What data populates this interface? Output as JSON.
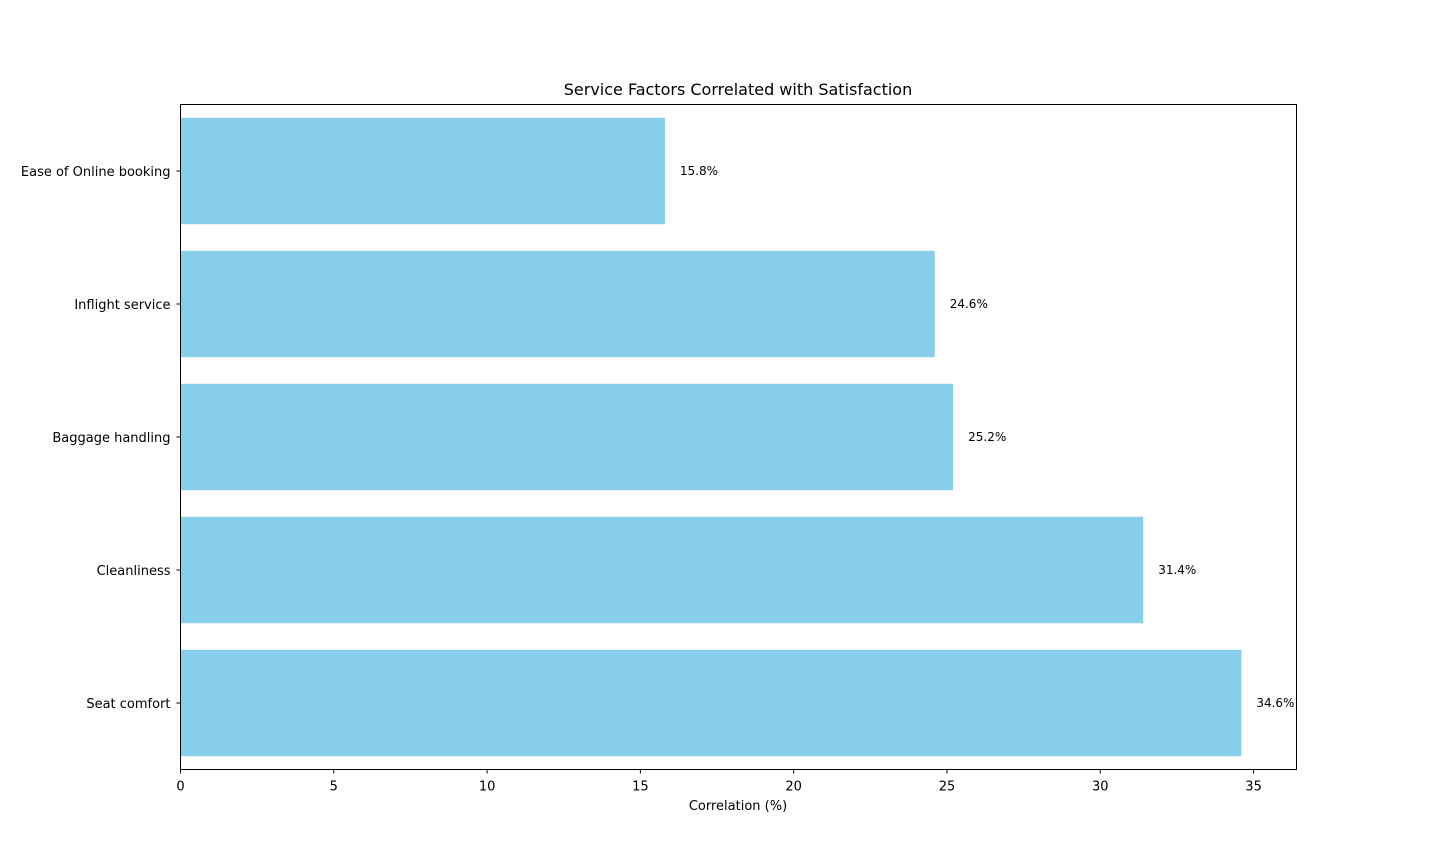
{
  "chart_data": {
    "type": "bar",
    "orientation": "horizontal",
    "title": "Service Factors Correlated with Satisfaction",
    "xlabel": "Correlation (%)",
    "ylabel": "",
    "categories": [
      "Ease of Online booking",
      "Inflight service",
      "Baggage handling",
      "Cleanliness",
      "Seat comfort"
    ],
    "values": [
      15.8,
      24.6,
      25.2,
      31.4,
      34.6
    ],
    "value_labels": [
      "15.8%",
      "24.6%",
      "25.2%",
      "31.4%",
      "34.6%"
    ],
    "xlim": [
      0,
      36.4
    ],
    "xticks": [
      0,
      5,
      10,
      15,
      20,
      25,
      30,
      35
    ],
    "bar_color": "#87ceeb",
    "grid": false,
    "legend": "none"
  }
}
